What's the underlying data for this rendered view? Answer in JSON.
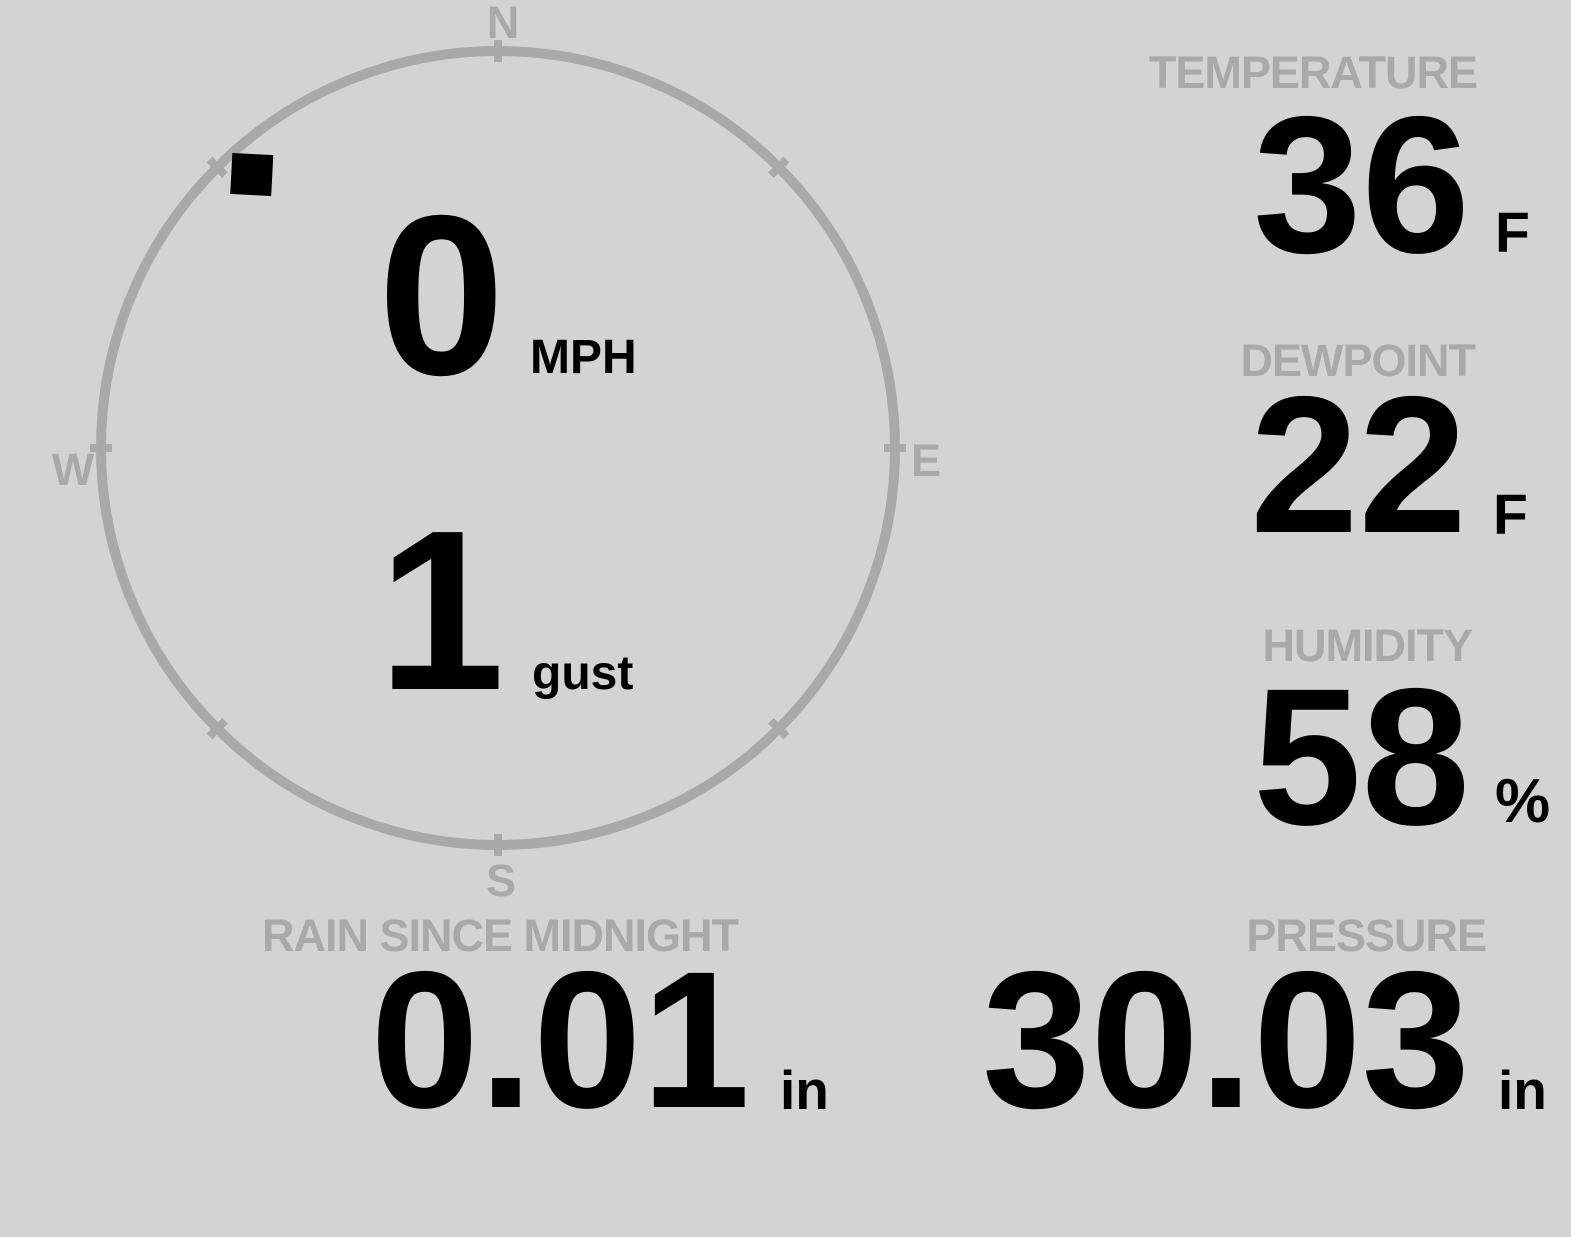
{
  "colors": {
    "background": "#d3d3d3",
    "muted": "#a9a9a9",
    "text": "#000000"
  },
  "wind": {
    "compass": {
      "north": "N",
      "east": "E",
      "south": "S",
      "west": "W"
    },
    "speed": {
      "value": "0",
      "unit": "MPH"
    },
    "gust": {
      "value": "1",
      "unit": "gust"
    },
    "direction_degrees": 318
  },
  "metrics": [
    {
      "id": "temperature",
      "label": "TEMPERATURE",
      "value": "36",
      "unit": "F"
    },
    {
      "id": "dewpoint",
      "label": "DEWPOINT",
      "value": "22",
      "unit": "F"
    },
    {
      "id": "humidity",
      "label": "HUMIDITY",
      "value": "58",
      "unit": "%"
    },
    {
      "id": "rain_since_midnight",
      "label": "RAIN SINCE MIDNIGHT",
      "value": "0.01",
      "unit": "in"
    },
    {
      "id": "pressure",
      "label": "PRESSURE",
      "value": "30.03",
      "unit": "in"
    }
  ]
}
